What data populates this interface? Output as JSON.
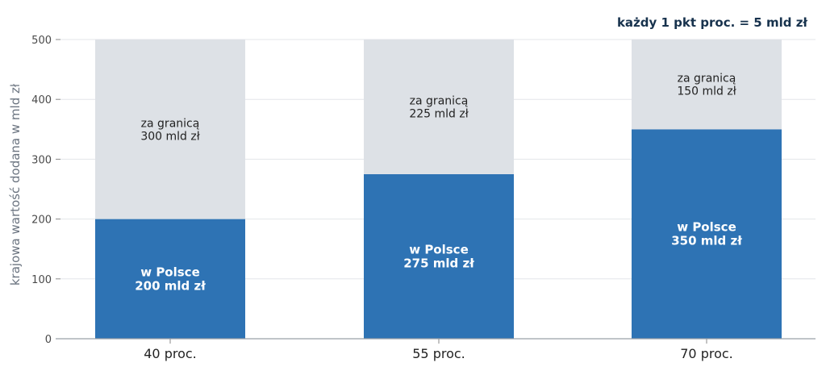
{
  "chart_data": {
    "type": "bar",
    "stacked": true,
    "categories": [
      "40 proc.",
      "55 proc.",
      "70 proc."
    ],
    "series": [
      {
        "values": [
          200,
          275,
          350
        ],
        "color": "#2e73b4",
        "labels": [
          [
            "w Polsce",
            "200 mld zł"
          ],
          [
            "w Polsce",
            "275 mld zł"
          ],
          [
            "w Polsce",
            "350 mld zł"
          ]
        ]
      },
      {
        "values": [
          300,
          225,
          150
        ],
        "color": "#dde1e6",
        "labels": [
          [
            "za granicą",
            "300 mld zł"
          ],
          [
            "za granicą",
            "225 mld zł"
          ],
          [
            "za granicą",
            "150 mld zł"
          ]
        ]
      }
    ],
    "ylabel": "krajowa wartość dodana w mld zł",
    "xlabel": "",
    "ylim": [
      0,
      500
    ],
    "yticks": [
      0,
      100,
      200,
      300,
      400,
      500
    ],
    "grid": true,
    "annotation": "każdy 1 pkt proc. = 5 mld zł"
  }
}
